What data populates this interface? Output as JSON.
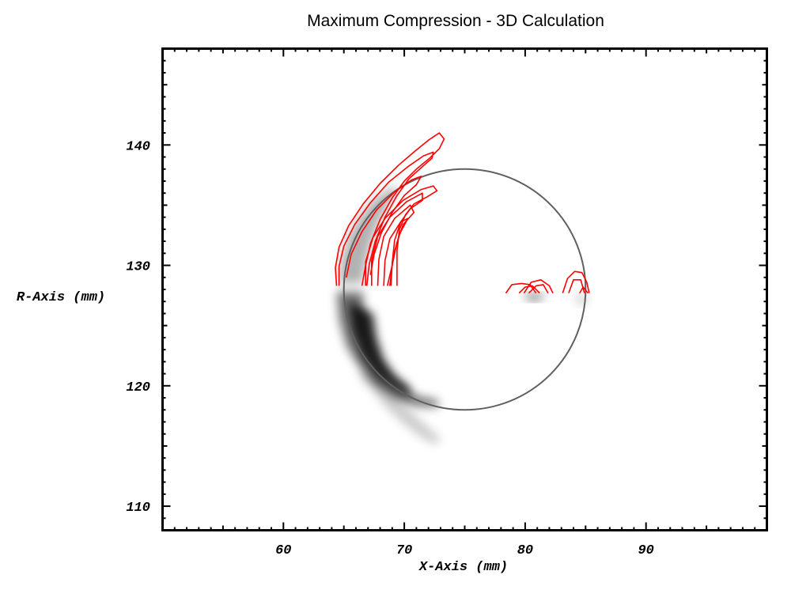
{
  "chart_data": {
    "type": "contour",
    "title": "Maximum Compression - 3D Calculation",
    "xlabel": "X-Axis (mm)",
    "ylabel": "R-Axis (mm)",
    "xlim": [
      50,
      100
    ],
    "ylim": [
      108,
      148
    ],
    "x_ticks": [
      60,
      70,
      80,
      90
    ],
    "y_ticks": [
      110,
      120,
      130,
      140
    ],
    "grid": false,
    "colors": {
      "contour": "#ff0000",
      "circle": "#606060",
      "frame": "#000000",
      "shade_dark": "#000000"
    },
    "circle": {
      "center": [
        75.0,
        128.0
      ],
      "rx": 10.0,
      "ry": 10.0
    },
    "red_contours": [
      [
        [
          64.4,
          128.3
        ],
        [
          64.3,
          129.8
        ],
        [
          64.6,
          131.5
        ],
        [
          65.4,
          133.3
        ],
        [
          66.6,
          135.1
        ],
        [
          68.0,
          136.8
        ],
        [
          69.5,
          138.3
        ],
        [
          70.9,
          139.5
        ],
        [
          72.0,
          140.4
        ],
        [
          72.9,
          141.0
        ],
        [
          73.3,
          140.5
        ],
        [
          72.9,
          139.7
        ],
        [
          72.1,
          138.9
        ],
        [
          71.0,
          138.0
        ],
        [
          70.0,
          137.0
        ],
        [
          69.0,
          135.6
        ],
        [
          68.0,
          133.8
        ],
        [
          67.2,
          131.8
        ],
        [
          66.8,
          130.0
        ],
        [
          66.5,
          128.3
        ]
      ],
      [
        [
          64.6,
          128.3
        ],
        [
          64.6,
          129.9
        ],
        [
          65.0,
          131.6
        ],
        [
          65.9,
          133.4
        ],
        [
          67.2,
          135.2
        ],
        [
          68.7,
          136.9
        ],
        [
          70.3,
          138.2
        ],
        [
          71.6,
          139.1
        ],
        [
          72.4,
          139.4
        ],
        [
          72.3,
          138.9
        ],
        [
          71.5,
          138.2
        ],
        [
          70.4,
          137.2
        ],
        [
          69.4,
          135.8
        ],
        [
          68.4,
          134.0
        ],
        [
          67.6,
          132.0
        ],
        [
          67.1,
          130.1
        ],
        [
          66.9,
          128.3
        ]
      ],
      [
        [
          65.2,
          129.0
        ],
        [
          65.6,
          130.9
        ],
        [
          66.5,
          132.8
        ],
        [
          67.7,
          134.6
        ],
        [
          69.2,
          136.1
        ],
        [
          70.6,
          137.1
        ],
        [
          71.4,
          137.4
        ],
        [
          71.0,
          136.7
        ],
        [
          70.0,
          135.8
        ],
        [
          69.0,
          134.4
        ],
        [
          68.1,
          132.7
        ],
        [
          67.5,
          130.9
        ],
        [
          67.2,
          129.2
        ]
      ],
      [
        [
          66.8,
          128.3
        ],
        [
          66.8,
          130.3
        ],
        [
          67.4,
          132.3
        ],
        [
          68.4,
          133.9
        ],
        [
          69.9,
          135.4
        ],
        [
          71.4,
          136.3
        ],
        [
          72.4,
          136.6
        ],
        [
          72.7,
          136.2
        ],
        [
          71.9,
          135.7
        ],
        [
          70.8,
          135.1
        ],
        [
          70.1,
          134.2
        ],
        [
          69.6,
          133.0
        ],
        [
          69.4,
          131.2
        ],
        [
          69.4,
          129.3
        ],
        [
          69.4,
          128.3
        ]
      ],
      [
        [
          67.3,
          128.3
        ],
        [
          67.3,
          130.4
        ],
        [
          67.8,
          132.4
        ],
        [
          68.8,
          134.0
        ],
        [
          70.2,
          135.3
        ],
        [
          71.5,
          136.0
        ],
        [
          71.5,
          135.4
        ],
        [
          70.5,
          134.7
        ],
        [
          69.7,
          133.6
        ],
        [
          69.2,
          132.1
        ],
        [
          69.0,
          130.2
        ],
        [
          68.9,
          128.3
        ]
      ],
      [
        [
          67.8,
          128.3
        ],
        [
          67.9,
          130.5
        ],
        [
          68.3,
          132.4
        ],
        [
          69.2,
          133.9
        ],
        [
          70.5,
          135.0
        ],
        [
          70.8,
          134.4
        ],
        [
          69.9,
          133.4
        ],
        [
          69.4,
          131.9
        ],
        [
          69.0,
          130.0
        ],
        [
          68.6,
          128.3
        ]
      ],
      [
        [
          68.3,
          128.3
        ],
        [
          68.4,
          130.4
        ],
        [
          68.8,
          132.2
        ],
        [
          69.7,
          133.6
        ],
        [
          70.3,
          133.9
        ],
        [
          69.6,
          132.6
        ],
        [
          69.1,
          130.8
        ],
        [
          68.8,
          128.3
        ]
      ],
      [
        [
          78.4,
          127.7
        ],
        [
          78.9,
          128.4
        ],
        [
          79.7,
          128.5
        ],
        [
          80.4,
          128.4
        ],
        [
          80.9,
          127.7
        ]
      ],
      [
        [
          79.5,
          127.7
        ],
        [
          80.0,
          128.2
        ],
        [
          80.6,
          128.3
        ],
        [
          81.2,
          127.7
        ]
      ],
      [
        [
          79.9,
          127.7
        ],
        [
          80.5,
          128.6
        ],
        [
          81.3,
          128.8
        ],
        [
          82.0,
          128.3
        ],
        [
          82.3,
          127.7
        ]
      ],
      [
        [
          80.3,
          127.7
        ],
        [
          80.9,
          128.3
        ],
        [
          81.5,
          128.4
        ],
        [
          81.9,
          127.7
        ]
      ],
      [
        [
          83.1,
          127.7
        ],
        [
          83.5,
          128.9
        ],
        [
          84.1,
          129.5
        ],
        [
          84.7,
          129.4
        ],
        [
          85.1,
          128.6
        ],
        [
          85.3,
          127.7
        ]
      ],
      [
        [
          83.6,
          127.7
        ],
        [
          84.0,
          128.8
        ],
        [
          84.6,
          128.8
        ],
        [
          84.9,
          127.7
        ]
      ],
      [
        [
          84.5,
          127.7
        ],
        [
          84.8,
          128.2
        ],
        [
          85.2,
          127.7
        ]
      ]
    ],
    "shaded_bands": [
      {
        "points": [
          [
            64.4,
            127.8
          ],
          [
            64.6,
            125.5
          ],
          [
            65.2,
            123.3
          ],
          [
            66.3,
            121.5
          ],
          [
            67.6,
            120.0
          ],
          [
            69.2,
            118.9
          ],
          [
            71.0,
            118.3
          ],
          [
            72.8,
            118.2
          ],
          [
            72.8,
            118.8
          ],
          [
            71.0,
            119.2
          ],
          [
            69.4,
            120.0
          ],
          [
            68.2,
            121.2
          ],
          [
            67.3,
            122.8
          ],
          [
            66.8,
            124.6
          ],
          [
            66.6,
            126.3
          ],
          [
            66.6,
            127.8
          ]
        ],
        "opacity": 0.55
      },
      {
        "points": [
          [
            65.4,
            127.0
          ],
          [
            65.8,
            124.5
          ],
          [
            66.6,
            122.4
          ],
          [
            67.8,
            120.7
          ],
          [
            69.3,
            119.6
          ],
          [
            70.6,
            119.0
          ],
          [
            70.4,
            119.9
          ],
          [
            69.2,
            120.9
          ],
          [
            68.3,
            122.2
          ],
          [
            67.7,
            124.0
          ],
          [
            67.4,
            126.0
          ]
        ],
        "opacity": 0.85
      },
      {
        "points": [
          [
            66.2,
            120.9
          ],
          [
            67.4,
            119.6
          ],
          [
            68.6,
            118.1
          ],
          [
            69.9,
            116.9
          ],
          [
            71.3,
            115.8
          ],
          [
            72.6,
            115.1
          ],
          [
            73.0,
            115.6
          ],
          [
            71.9,
            116.6
          ],
          [
            70.6,
            117.8
          ],
          [
            69.3,
            119.1
          ],
          [
            68.0,
            120.3
          ],
          [
            67.0,
            121.3
          ]
        ],
        "opacity": 0.2
      },
      {
        "points": [
          [
            64.6,
            128.5
          ],
          [
            64.8,
            130.6
          ],
          [
            65.4,
            132.5
          ],
          [
            66.4,
            134.2
          ],
          [
            67.6,
            135.6
          ],
          [
            68.8,
            136.4
          ],
          [
            69.6,
            136.5
          ],
          [
            68.8,
            135.2
          ],
          [
            67.8,
            133.4
          ],
          [
            67.1,
            131.3
          ],
          [
            66.7,
            129.5
          ],
          [
            66.5,
            128.5
          ]
        ],
        "opacity": 0.3
      },
      {
        "points": [
          [
            79.8,
            127.7
          ],
          [
            80.3,
            127.0
          ],
          [
            81.2,
            127.0
          ],
          [
            81.7,
            127.7
          ]
        ],
        "opacity": 0.4
      },
      {
        "points": [
          [
            84.0,
            127.6
          ],
          [
            84.4,
            126.6
          ],
          [
            85.0,
            126.7
          ],
          [
            85.3,
            127.6
          ]
        ],
        "opacity": 0.15
      }
    ]
  }
}
